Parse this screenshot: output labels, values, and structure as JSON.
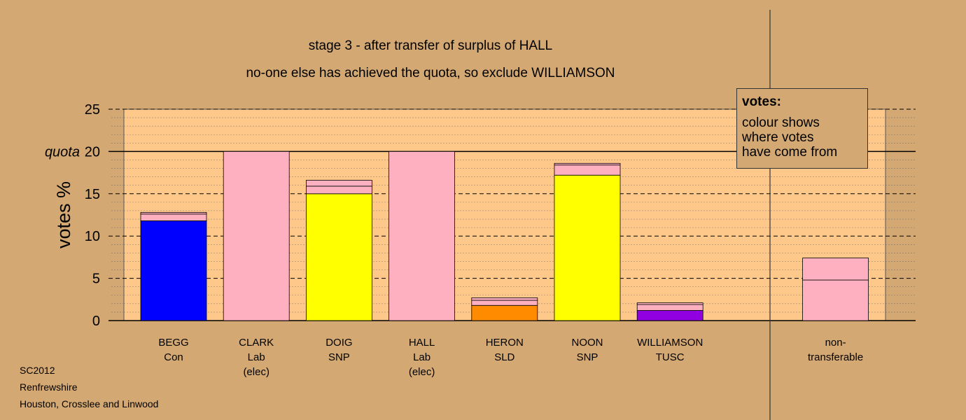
{
  "title": "stage 3 - after transfer of surplus of HALL",
  "subtitle": "no-one else has achieved the quota, so exclude WILLIAMSON",
  "legend": {
    "heading": "votes:",
    "body": "colour shows\nwhere votes\nhave come from"
  },
  "footer": {
    "line1": "SC2012",
    "line2": "Renfrewshire",
    "line3": "Houston, Crosslee and Linwood"
  },
  "colors": {
    "background": "#d4a872",
    "plot_area": "#fdc88a",
    "Con": "#0000ff",
    "Lab": "#ffb0c0",
    "SNP": "#ffff00",
    "SLD": "#ff8c00",
    "TUSC": "#9000e0"
  },
  "chart_data": {
    "type": "bar",
    "stacked": true,
    "ylabel": "votes %",
    "ylim": [
      0,
      25
    ],
    "yticks": [
      0,
      5,
      10,
      15,
      20,
      25
    ],
    "quota": 20,
    "quota_label": "quota",
    "grid": true,
    "categories": [
      {
        "name": "BEGG",
        "party": "Con",
        "note": ""
      },
      {
        "name": "CLARK",
        "party": "Lab",
        "note": "(elec)"
      },
      {
        "name": "DOIG",
        "party": "SNP",
        "note": ""
      },
      {
        "name": "HALL",
        "party": "Lab",
        "note": "(elec)"
      },
      {
        "name": "HERON",
        "party": "SLD",
        "note": ""
      },
      {
        "name": "NOON",
        "party": "SNP",
        "note": ""
      },
      {
        "name": "WILLIAMSON",
        "party": "TUSC",
        "note": ""
      },
      {
        "name": "",
        "party": "",
        "note": ""
      },
      {
        "name": "non-",
        "party": "transferable",
        "note": ""
      }
    ],
    "stacks": [
      [
        {
          "value": 11.8,
          "color": "#0000ff"
        },
        {
          "value": 0.8,
          "color": "#ffb0c0"
        },
        {
          "value": 0.2,
          "color": "#ffb0c0"
        }
      ],
      [
        {
          "value": 20.0,
          "color": "#ffb0c0"
        }
      ],
      [
        {
          "value": 15.0,
          "color": "#ffff00"
        },
        {
          "value": 0.9,
          "color": "#ffb0c0"
        },
        {
          "value": 0.7,
          "color": "#ffb0c0"
        }
      ],
      [
        {
          "value": 20.0,
          "color": "#ffb0c0"
        }
      ],
      [
        {
          "value": 1.8,
          "color": "#ff8c00"
        },
        {
          "value": 0.6,
          "color": "#ffb0c0"
        },
        {
          "value": 0.3,
          "color": "#ffb0c0"
        }
      ],
      [
        {
          "value": 17.2,
          "color": "#ffff00"
        },
        {
          "value": 1.2,
          "color": "#ffb0c0"
        },
        {
          "value": 0.2,
          "color": "#ffb0c0"
        }
      ],
      [
        {
          "value": 1.2,
          "color": "#9000e0"
        },
        {
          "value": 0.7,
          "color": "#ffb0c0"
        },
        {
          "value": 0.2,
          "color": "#ffb0c0"
        }
      ],
      [],
      [
        {
          "value": 4.8,
          "color": "#ffb0c0"
        },
        {
          "value": 2.6,
          "color": "#ffb0c0"
        }
      ]
    ]
  }
}
